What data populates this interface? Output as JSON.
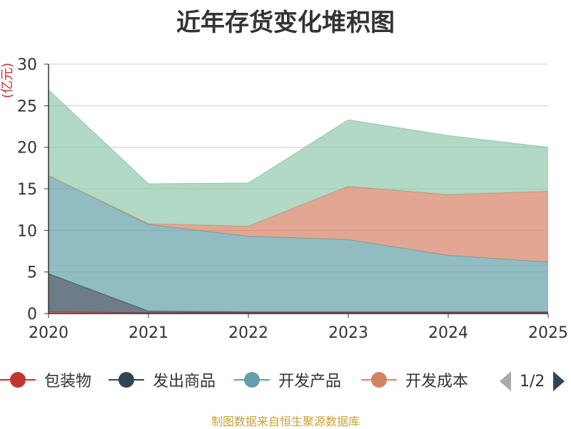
{
  "chart_data": {
    "type": "area",
    "stacked": true,
    "title": "近年存货变化堆积图",
    "unit": "(亿元)",
    "x": [
      "2020",
      "2021",
      "2022",
      "2023",
      "2024",
      "2025"
    ],
    "ylim": [
      0,
      30
    ],
    "yticks": [
      0,
      5,
      10,
      15,
      20,
      25,
      30
    ],
    "grid": true,
    "legend_position": "bottom",
    "series": [
      {
        "name": "包装物",
        "color": "#c23531",
        "values": [
          0.2,
          0.1,
          0.1,
          0.1,
          0.1,
          0.1
        ]
      },
      {
        "name": "发出商品",
        "color": "#2f4554",
        "values": [
          4.6,
          0.2,
          0.1,
          0.1,
          0.1,
          0.1
        ]
      },
      {
        "name": "开发产品",
        "color": "#61a0a8",
        "values": [
          11.8,
          10.4,
          9.1,
          8.7,
          6.8,
          6.0
        ]
      },
      {
        "name": "开发成本",
        "color": "#d48265",
        "values": [
          0.0,
          0.1,
          1.2,
          6.4,
          7.3,
          8.5
        ]
      },
      {
        "color": "#91c7ae",
        "values": [
          10.3,
          4.8,
          5.2,
          8.0,
          7.1,
          5.3
        ]
      }
    ]
  },
  "legend": {
    "items": [
      "包装物",
      "发出商品",
      "开发产品",
      "开发成本"
    ],
    "page_text": "1/2"
  },
  "footer": {
    "source": "制图数据来自恒生聚源数据库"
  }
}
